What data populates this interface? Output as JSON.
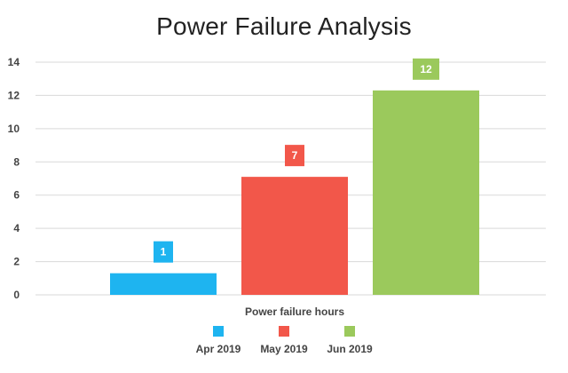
{
  "chart_data": {
    "type": "bar",
    "title": "Power Failure Analysis",
    "xlabel": "Power failure hours",
    "ylabel": "",
    "ylim": [
      0,
      14
    ],
    "yticks": [
      0,
      2,
      4,
      6,
      8,
      10,
      12,
      14
    ],
    "grid": true,
    "legend_position": "bottom",
    "series": [
      {
        "name": "Apr 2019",
        "value": 1.3,
        "label": "1",
        "color": "#1eb4f0"
      },
      {
        "name": "May 2019",
        "value": 7.1,
        "label": "7",
        "color": "#f2574a"
      },
      {
        "name": "Jun 2019",
        "value": 12.3,
        "label": "12",
        "color": "#9bc95c"
      }
    ]
  }
}
